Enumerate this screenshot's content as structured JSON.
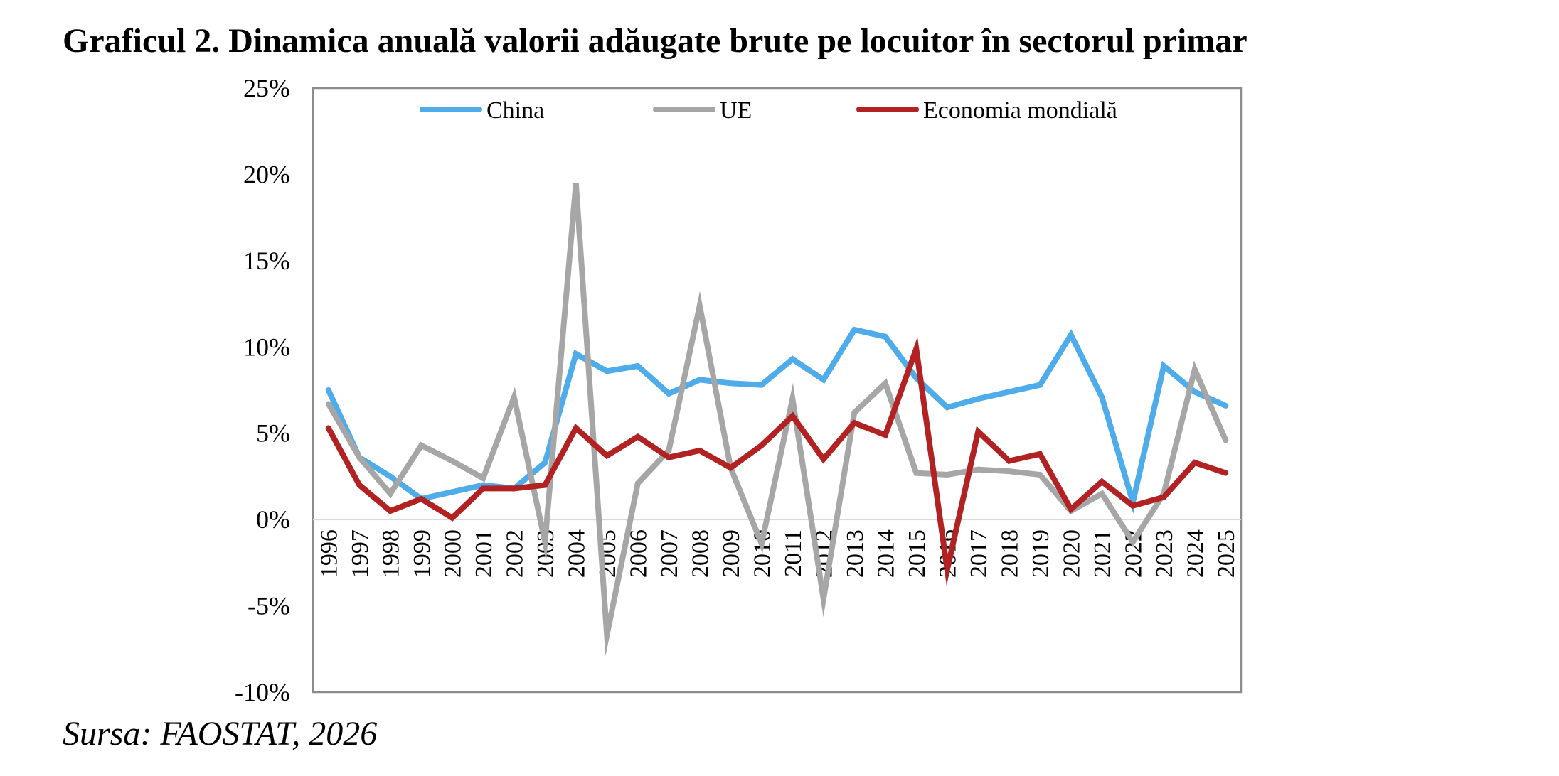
{
  "title": "Graficul 2. Dinamica anuală valorii adăugate brute pe locuitor în sectorul primar",
  "source": "Sursa: FAOSTAT, 2026",
  "chart_data": {
    "type": "line",
    "categories": [
      "1996",
      "1997",
      "1998",
      "1999",
      "2000",
      "2001",
      "2002",
      "2003",
      "2004",
      "2005",
      "2006",
      "2007",
      "2008",
      "2009",
      "2010",
      "2011",
      "2012",
      "2013",
      "2014",
      "2015",
      "2016",
      "2017",
      "2018",
      "2019",
      "2020",
      "2021",
      "2022",
      "2023",
      "2024",
      "2025"
    ],
    "y_tick_labels": [
      "25%",
      "20%",
      "15%",
      "10%",
      "5%",
      "0%",
      "-5%",
      "-10%"
    ],
    "ylim": [
      -10,
      25
    ],
    "y_tick_step": 5,
    "grid": false,
    "legend_position": "top",
    "series": [
      {
        "name": "China",
        "color": "#4DACE9",
        "values": [
          7.5,
          3.6,
          2.5,
          1.2,
          1.6,
          2.0,
          1.8,
          3.3,
          9.6,
          8.6,
          8.9,
          7.3,
          8.1,
          7.9,
          7.8,
          9.3,
          8.1,
          11.0,
          10.6,
          8.2,
          6.5,
          7.0,
          7.4,
          7.8,
          10.7,
          7.1,
          1.0,
          8.9,
          7.4,
          6.6
        ]
      },
      {
        "name": "UE",
        "color": "#A6A6A6",
        "values": [
          6.7,
          3.6,
          1.5,
          4.3,
          3.4,
          2.4,
          7.1,
          -1.3,
          19.5,
          -6.7,
          2.1,
          4.0,
          12.4,
          3.0,
          -1.4,
          7.0,
          -4.6,
          6.2,
          7.9,
          2.7,
          2.6,
          2.9,
          2.8,
          2.6,
          0.5,
          1.5,
          -1.3,
          1.5,
          8.7,
          4.6
        ]
      },
      {
        "name": "Economia mondială",
        "color": "#B22222",
        "values": [
          5.3,
          2.0,
          0.5,
          1.2,
          0.1,
          1.8,
          1.8,
          2.0,
          5.3,
          3.7,
          4.8,
          3.6,
          4.0,
          3.0,
          4.3,
          6.0,
          3.5,
          5.6,
          4.9,
          9.9,
          -2.9,
          5.1,
          3.4,
          3.8,
          0.6,
          2.2,
          0.8,
          1.3,
          3.3,
          2.7
        ]
      }
    ]
  }
}
